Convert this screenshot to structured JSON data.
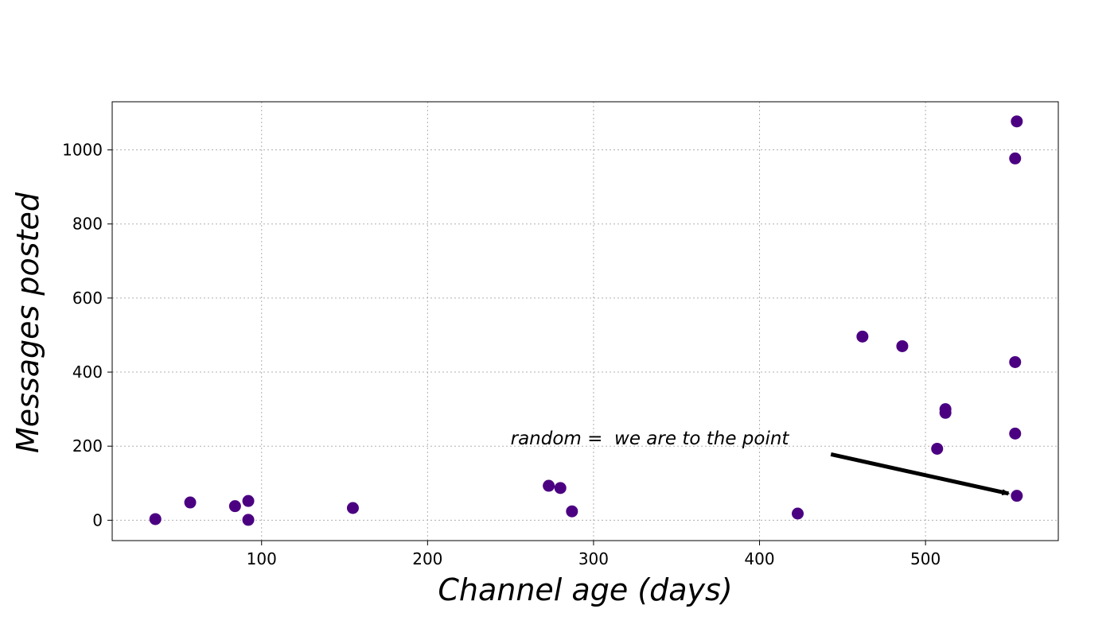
{
  "chart_data": {
    "type": "scatter",
    "title": "",
    "xlabel": "Channel age (days)",
    "ylabel": "Messages posted",
    "xlim": [
      10,
      580
    ],
    "ylim": [
      -55,
      1130
    ],
    "xticks": [
      100,
      200,
      300,
      400,
      500
    ],
    "yticks": [
      0,
      200,
      400,
      600,
      800,
      1000
    ],
    "grid": true,
    "marker_color": "#4b0082",
    "series": [
      {
        "points": [
          {
            "x": 36,
            "y": 3
          },
          {
            "x": 57,
            "y": 48
          },
          {
            "x": 84,
            "y": 38
          },
          {
            "x": 92,
            "y": 52
          },
          {
            "x": 92,
            "y": 1
          },
          {
            "x": 155,
            "y": 33
          },
          {
            "x": 273,
            "y": 93
          },
          {
            "x": 280,
            "y": 87
          },
          {
            "x": 287,
            "y": 24
          },
          {
            "x": 423,
            "y": 18
          },
          {
            "x": 462,
            "y": 496
          },
          {
            "x": 486,
            "y": 470
          },
          {
            "x": 507,
            "y": 193
          },
          {
            "x": 512,
            "y": 300
          },
          {
            "x": 512,
            "y": 290
          },
          {
            "x": 554,
            "y": 427
          },
          {
            "x": 554,
            "y": 234
          },
          {
            "x": 555,
            "y": 66
          },
          {
            "x": 554,
            "y": 977
          },
          {
            "x": 555,
            "y": 1077
          }
        ]
      }
    ],
    "annotations": [
      {
        "text": "random =  we are to the point",
        "text_at": {
          "x": 250,
          "y": 205
        },
        "arrow_from": {
          "x": 443,
          "y": 178
        },
        "arrow_to": {
          "x": 550,
          "y": 72
        }
      }
    ]
  }
}
